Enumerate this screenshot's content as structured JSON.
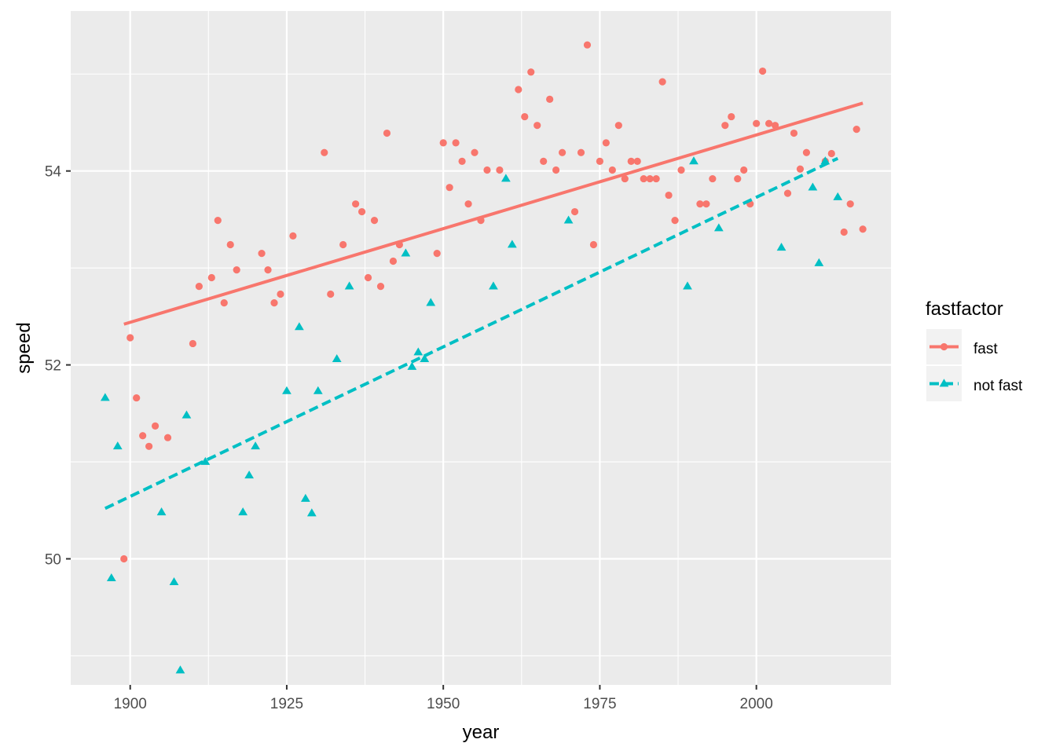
{
  "chart_data": {
    "type": "scatter",
    "title": "",
    "xlabel": "year",
    "ylabel": "speed",
    "xlim": [
      1890.5,
      2021.5
    ],
    "ylim": [
      48.7,
      55.65
    ],
    "xticks": [
      1900,
      1925,
      1950,
      1975,
      2000
    ],
    "xtick_labels": [
      "1900",
      "1925",
      "1950",
      "1975",
      "2000"
    ],
    "yticks": [
      50,
      52,
      54
    ],
    "ytick_labels": [
      "50",
      "52",
      "54"
    ],
    "xminor": [
      1912.5,
      1937.5,
      1962.5,
      1987.5
    ],
    "yminor": [
      49,
      51,
      53,
      55
    ],
    "legend": {
      "title": "fastfactor",
      "position": "right",
      "entries": [
        {
          "label": "fast",
          "color": "#F8766D",
          "shape": "circle",
          "linetype": "solid"
        },
        {
          "label": "not fast",
          "color": "#00BFC4",
          "shape": "triangle",
          "linetype": "dashed"
        }
      ]
    },
    "series": [
      {
        "name": "fast",
        "color": "#F8766D",
        "shape": "circle",
        "points": [
          [
            1899,
            50.0
          ],
          [
            1900,
            52.28
          ],
          [
            1901,
            51.66
          ],
          [
            1902,
            51.27
          ],
          [
            1903,
            51.16
          ],
          [
            1904,
            51.37
          ],
          [
            1906,
            51.25
          ],
          [
            1910,
            52.22
          ],
          [
            1911,
            52.81
          ],
          [
            1913,
            52.9
          ],
          [
            1914,
            53.49
          ],
          [
            1915,
            52.64
          ],
          [
            1916,
            53.24
          ],
          [
            1917,
            52.98
          ],
          [
            1921,
            53.15
          ],
          [
            1922,
            52.98
          ],
          [
            1923,
            52.64
          ],
          [
            1924,
            52.73
          ],
          [
            1926,
            53.33
          ],
          [
            1931,
            54.19
          ],
          [
            1932,
            52.73
          ],
          [
            1934,
            53.24
          ],
          [
            1936,
            53.66
          ],
          [
            1937,
            53.58
          ],
          [
            1938,
            52.9
          ],
          [
            1939,
            53.49
          ],
          [
            1940,
            52.81
          ],
          [
            1941,
            54.39
          ],
          [
            1942,
            53.07
          ],
          [
            1943,
            53.24
          ],
          [
            1949,
            53.15
          ],
          [
            1950,
            54.29
          ],
          [
            1951,
            53.83
          ],
          [
            1952,
            54.29
          ],
          [
            1953,
            54.1
          ],
          [
            1954,
            53.66
          ],
          [
            1955,
            54.19
          ],
          [
            1956,
            53.49
          ],
          [
            1957,
            54.01
          ],
          [
            1959,
            54.01
          ],
          [
            1962,
            54.84
          ],
          [
            1963,
            54.56
          ],
          [
            1964,
            55.02
          ],
          [
            1965,
            54.47
          ],
          [
            1966,
            54.1
          ],
          [
            1967,
            54.74
          ],
          [
            1968,
            54.01
          ],
          [
            1969,
            54.19
          ],
          [
            1971,
            53.58
          ],
          [
            1972,
            54.19
          ],
          [
            1973,
            55.3
          ],
          [
            1974,
            53.24
          ],
          [
            1975,
            54.1
          ],
          [
            1976,
            54.29
          ],
          [
            1977,
            54.01
          ],
          [
            1978,
            54.47
          ],
          [
            1979,
            53.92
          ],
          [
            1980,
            54.1
          ],
          [
            1981,
            54.1
          ],
          [
            1982,
            53.92
          ],
          [
            1983,
            53.92
          ],
          [
            1984,
            53.92
          ],
          [
            1985,
            54.92
          ],
          [
            1986,
            53.75
          ],
          [
            1987,
            53.49
          ],
          [
            1988,
            54.01
          ],
          [
            1991,
            53.66
          ],
          [
            1992,
            53.66
          ],
          [
            1993,
            53.92
          ],
          [
            1995,
            54.47
          ],
          [
            1996,
            54.56
          ],
          [
            1997,
            53.92
          ],
          [
            1998,
            54.01
          ],
          [
            1999,
            53.66
          ],
          [
            2000,
            54.49
          ],
          [
            2001,
            55.03
          ],
          [
            2002,
            54.49
          ],
          [
            2003,
            54.47
          ],
          [
            2005,
            53.77
          ],
          [
            2006,
            54.39
          ],
          [
            2007,
            54.02
          ],
          [
            2008,
            54.19
          ],
          [
            2011,
            54.1
          ],
          [
            2012,
            54.18
          ],
          [
            2014,
            53.37
          ],
          [
            2015,
            53.66
          ],
          [
            2016,
            54.43
          ],
          [
            2017,
            53.4
          ]
        ],
        "fit": {
          "x": [
            1899,
            2017
          ],
          "y": [
            52.42,
            54.7
          ]
        }
      },
      {
        "name": "not fast",
        "color": "#00BFC4",
        "shape": "triangle",
        "points": [
          [
            1896,
            51.66
          ],
          [
            1897,
            49.8
          ],
          [
            1898,
            51.16
          ],
          [
            1905,
            50.48
          ],
          [
            1907,
            49.76
          ],
          [
            1908,
            48.85
          ],
          [
            1909,
            51.48
          ],
          [
            1912,
            51.0
          ],
          [
            1918,
            50.48
          ],
          [
            1919,
            50.86
          ],
          [
            1920,
            51.16
          ],
          [
            1925,
            51.73
          ],
          [
            1927,
            52.39
          ],
          [
            1928,
            50.62
          ],
          [
            1929,
            50.47
          ],
          [
            1930,
            51.73
          ],
          [
            1933,
            52.06
          ],
          [
            1935,
            52.81
          ],
          [
            1944,
            53.15
          ],
          [
            1945,
            51.98
          ],
          [
            1946,
            52.13
          ],
          [
            1947,
            52.06
          ],
          [
            1948,
            52.64
          ],
          [
            1958,
            52.81
          ],
          [
            1960,
            53.92
          ],
          [
            1961,
            53.24
          ],
          [
            1970,
            53.49
          ],
          [
            1989,
            52.81
          ],
          [
            1990,
            54.1
          ],
          [
            1994,
            53.41
          ],
          [
            2004,
            53.21
          ],
          [
            2009,
            53.83
          ],
          [
            2010,
            53.05
          ],
          [
            2011,
            54.1
          ],
          [
            2013,
            53.73
          ]
        ],
        "fit": {
          "x": [
            1896,
            2013
          ],
          "y": [
            50.52,
            54.13
          ]
        }
      }
    ]
  }
}
